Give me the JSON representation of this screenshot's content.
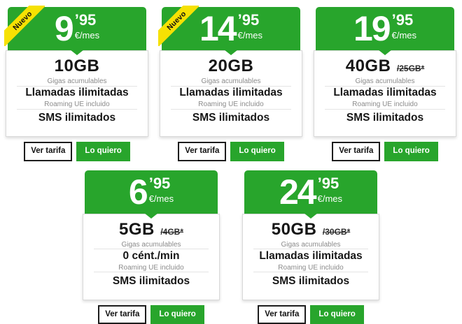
{
  "theme": {
    "brand_green": "#28a52c",
    "badge_yellow": "#f6e103",
    "text_dark": "#161616",
    "text_muted": "#8b8b8b",
    "divider_grey": "#e4e4e4",
    "card_border": "#d9d9d9",
    "button_border_black": "#1d1d1d",
    "white": "#ffffff"
  },
  "actions": {
    "view_label": "Ver tarifa",
    "buy_label": "Lo quiero"
  },
  "cards": [
    {
      "badge": "Nuevo",
      "price_integer": "9",
      "price_decimals": "’95",
      "price_period": "€/mes",
      "data_amount": "10GB",
      "data_note": "Gigas acumulables",
      "calls_feature": "Llamadas ilimitadas",
      "roaming_note": "Roaming UE incluido",
      "sms_feature": "SMS ilimitados"
    },
    {
      "badge": "Nuevo",
      "price_integer": "14",
      "price_decimals": "’95",
      "price_period": "€/mes",
      "data_amount": "20GB",
      "data_note": "Gigas acumulables",
      "calls_feature": "Llamadas ilimitadas",
      "roaming_note": "Roaming UE incluido",
      "sms_feature": "SMS ilimitados"
    },
    {
      "price_integer": "19",
      "price_decimals": "’95",
      "price_period": "€/mes",
      "data_amount": "40GB",
      "data_amount_old": "/25GB*",
      "data_note": "Gigas acumulables",
      "calls_feature": "Llamadas ilimitadas",
      "roaming_note": "Roaming UE incluido",
      "sms_feature": "SMS ilimitados"
    },
    {
      "price_integer": "6",
      "price_decimals": "’95",
      "price_period": "€/mes",
      "data_amount": "5GB",
      "data_amount_old": "/4GB*",
      "data_note": "Gigas acumulables",
      "calls_feature": "0 cént./min",
      "roaming_note": "Roaming UE incluido",
      "sms_feature": "SMS ilimitados"
    },
    {
      "price_integer": "24",
      "price_decimals": "’95",
      "price_period": "€/mes",
      "data_amount": "50GB",
      "data_amount_old": "/30GB*",
      "data_note": "Gigas acumulables",
      "calls_feature": "Llamadas ilimitadas",
      "roaming_note": "Roaming UE incluido",
      "sms_feature": "SMS ilimitados"
    }
  ]
}
